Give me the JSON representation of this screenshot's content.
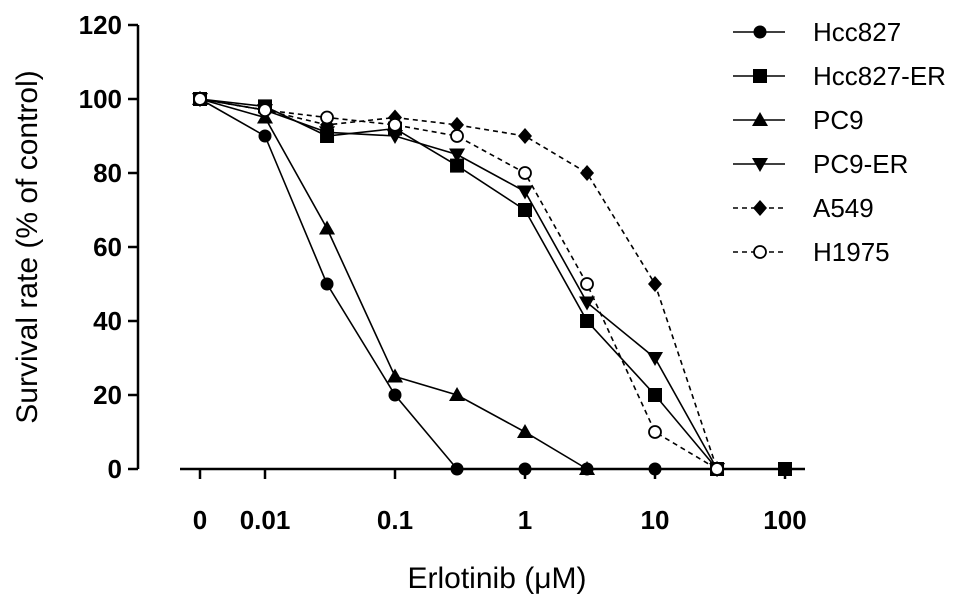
{
  "chart_data": {
    "type": "line",
    "xlabel": "Erlotinib (μM)",
    "ylabel": "Survival rate (% of control)",
    "ylim": [
      0,
      120
    ],
    "yticks": [
      "0",
      "20",
      "40",
      "60",
      "80",
      "100",
      "120"
    ],
    "xscale": "log",
    "xticks": [
      "0",
      "0.01",
      "0.1",
      "1",
      "10",
      "100"
    ],
    "x": [
      0,
      0.01,
      0.03,
      0.1,
      0.3,
      1,
      3,
      10,
      30,
      100
    ],
    "legend_position": "top-right",
    "series": [
      {
        "name": "Hcc827",
        "marker": "circle-filled",
        "dash": "solid",
        "values": [
          100,
          90,
          50,
          20,
          0,
          0,
          0,
          0,
          null,
          null
        ]
      },
      {
        "name": "Hcc827-ER",
        "marker": "square-filled",
        "dash": "solid",
        "values": [
          100,
          98,
          90,
          92,
          82,
          70,
          40,
          20,
          0,
          0
        ]
      },
      {
        "name": "PC9",
        "marker": "triangle-up-filled",
        "dash": "solid",
        "values": [
          100,
          95,
          65,
          25,
          20,
          10,
          0,
          null,
          null,
          null
        ]
      },
      {
        "name": "PC9-ER",
        "marker": "triangle-down-filled",
        "dash": "solid",
        "values": [
          100,
          97,
          91,
          90,
          85,
          75,
          45,
          30,
          0,
          null
        ]
      },
      {
        "name": "A549",
        "marker": "diamond-filled",
        "dash": "dashed",
        "values": [
          100,
          97,
          93,
          95,
          93,
          90,
          80,
          50,
          0,
          null
        ]
      },
      {
        "name": "H1975",
        "marker": "circle-open",
        "dash": "dashed",
        "values": [
          100,
          97,
          95,
          93,
          90,
          80,
          50,
          10,
          0,
          null
        ]
      }
    ]
  }
}
